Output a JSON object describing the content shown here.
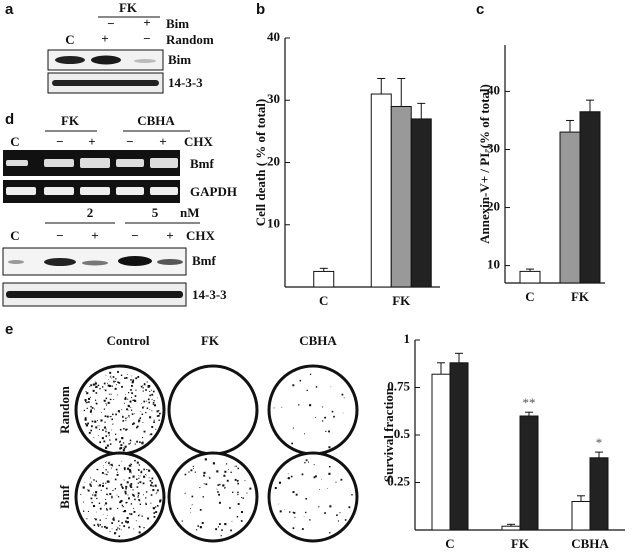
{
  "panel_labels": [
    "a",
    "b",
    "c",
    "d",
    "e"
  ],
  "panel_a": {
    "header": "FK",
    "bim_signs": [
      "−",
      "+"
    ],
    "bim_label": "Bim",
    "random_row": [
      "C",
      "+",
      "−"
    ],
    "random_label": "Random",
    "blots": [
      "Bim",
      "14-3-3"
    ]
  },
  "panel_d": {
    "top": {
      "headers": [
        "FK",
        "CBHA"
      ],
      "lanes": [
        "C",
        "−",
        "+",
        "−",
        "+"
      ],
      "treatment": "CHX",
      "blots": [
        "Bmf",
        "GAPDH"
      ]
    },
    "bottom": {
      "headers": [
        "2",
        "5"
      ],
      "unit": "nM",
      "lanes": [
        "C",
        "−",
        "+",
        "−",
        "+"
      ],
      "treatment": "CHX",
      "blots": [
        "Bmf",
        "14-3-3"
      ]
    }
  },
  "panel_e_images": {
    "columns": [
      "Control",
      "FK",
      "CBHA"
    ],
    "rows": [
      "Random",
      "Bmf"
    ]
  },
  "chart_data": [
    {
      "type": "bar",
      "y_label": "Cell death ( % of total)",
      "categories": [
        "C",
        "FK"
      ],
      "series": [
        {
          "color": "#ffffff",
          "values": [
            2.5,
            31
          ],
          "errors": [
            0.5,
            2.5
          ]
        },
        {
          "color": "#999999",
          "values": [
            null,
            29
          ],
          "errors": [
            null,
            4.5
          ]
        },
        {
          "color": "#222222",
          "values": [
            null,
            27
          ],
          "errors": [
            null,
            2.5
          ]
        }
      ],
      "ylim": [
        0,
        40
      ],
      "yticks": [
        10,
        20,
        30,
        40
      ]
    },
    {
      "type": "bar",
      "y_label": "Annexin-V+ / PI-(% of total)",
      "categories": [
        "C",
        "FK"
      ],
      "series": [
        {
          "color": "#ffffff",
          "values": [
            9,
            null
          ],
          "errors": [
            0.4,
            null
          ]
        },
        {
          "color": "#999999",
          "values": [
            null,
            33
          ],
          "errors": [
            null,
            2
          ]
        },
        {
          "color": "#222222",
          "values": [
            null,
            36.5
          ],
          "errors": [
            null,
            2
          ]
        }
      ],
      "ylim": [
        7,
        48
      ],
      "yticks": [
        10,
        20,
        30,
        40
      ]
    },
    {
      "type": "bar",
      "y_label": "Survival fraction",
      "categories": [
        "C",
        "FK",
        "CBHA"
      ],
      "series": [
        {
          "color": "#ffffff",
          "values": [
            0.82,
            0.02,
            0.15
          ],
          "errors": [
            0.06,
            0.01,
            0.03
          ]
        },
        {
          "color": "#222222",
          "values": [
            0.88,
            0.6,
            0.38
          ],
          "errors": [
            0.05,
            0.02,
            0.03
          ],
          "annotations": [
            null,
            "**",
            "*"
          ]
        }
      ],
      "ylim": [
        0,
        1
      ],
      "yticks": [
        0.25,
        0.5,
        0.75,
        1
      ]
    }
  ]
}
